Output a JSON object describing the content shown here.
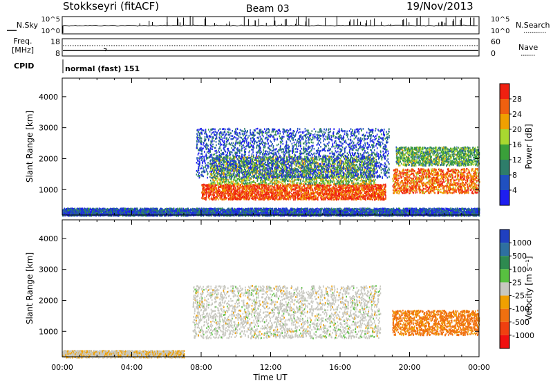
{
  "header": {
    "station": "Stokkseyri (fitACF)",
    "beam": "Beam 03",
    "date": "19/Nov/2013"
  },
  "side_labels": {
    "nsky": "N.Sky",
    "freq_line1": "Freq.",
    "freq_line2": "[MHz]",
    "cpid": "CPID",
    "nsearch": "N.Search",
    "nave": "Nave"
  },
  "cpid_text": "normal (fast) 151",
  "noise_panel": {
    "left_ticks": [
      "10^5",
      "10^0"
    ],
    "right_ticks": [
      "10^5",
      "10^0"
    ]
  },
  "freq_panel": {
    "left_ticks": [
      "18",
      "8"
    ],
    "right_ticks": [
      "60",
      "0"
    ]
  },
  "axes": {
    "ylabel": "Slant Range [km]",
    "xlabel": "Time UT",
    "y_ticks": [
      "1000",
      "2000",
      "3000",
      "4000"
    ],
    "x_ticks": [
      "00:00",
      "04:00",
      "08:00",
      "12:00",
      "16:00",
      "20:00",
      "00:00"
    ]
  },
  "power_scale": {
    "label": "Power [dB]",
    "ticks": [
      "4",
      "8",
      "12",
      "16",
      "20",
      "24",
      "28"
    ],
    "colors": [
      "#1e1ef0",
      "#2050c0",
      "#2e7d6a",
      "#3aa03a",
      "#a8d830",
      "#f0a000",
      "#f06010",
      "#f02010"
    ]
  },
  "velocity_scale": {
    "label": "Velocity [m s⁻¹]",
    "ticks": [
      "1000",
      "500",
      "100",
      "25",
      "-25",
      "-100",
      "-500",
      "-1000"
    ],
    "colors": [
      "#2040c0",
      "#2e70a0",
      "#2e8a50",
      "#58c040",
      "#c8c8c0",
      "#f0a000",
      "#f07010",
      "#f04010",
      "#f01010"
    ]
  },
  "chart_data": [
    {
      "type": "heatmap",
      "title": "Power",
      "xlabel": "Time UT",
      "ylabel": "Slant Range [km]",
      "xlim": [
        0,
        24
      ],
      "ylim": [
        180,
        4600
      ],
      "colorbar": {
        "label": "Power [dB]",
        "range": [
          0,
          32
        ]
      },
      "regions": [
        {
          "time": [
            8.0,
            18.6
          ],
          "range": [
            700,
            1200
          ],
          "value": 28
        },
        {
          "time": [
            8.5,
            18.0
          ],
          "range": [
            1200,
            2100
          ],
          "value": 16
        },
        {
          "time": [
            7.7,
            18.8
          ],
          "range": [
            1400,
            3000
          ],
          "value": 6
        },
        {
          "time": [
            19.0,
            24.0
          ],
          "range": [
            900,
            1700
          ],
          "value": 26
        },
        {
          "time": [
            19.2,
            24.0
          ],
          "range": [
            1800,
            2400
          ],
          "value": 14
        },
        {
          "time": [
            0.0,
            24.0
          ],
          "range": [
            180,
            420
          ],
          "value": 6
        }
      ]
    },
    {
      "type": "heatmap",
      "title": "Velocity",
      "xlabel": "Time UT",
      "ylabel": "Slant Range [km]",
      "xlim": [
        0,
        24
      ],
      "ylim": [
        180,
        4600
      ],
      "colorbar": {
        "label": "Velocity [m s⁻¹]",
        "range": [
          -1000,
          1000
        ]
      },
      "regions": [
        {
          "time": [
            7.5,
            18.3
          ],
          "range": [
            800,
            2500
          ],
          "value": 0
        },
        {
          "time": [
            19.0,
            24.0
          ],
          "range": [
            900,
            1700
          ],
          "value": -400
        },
        {
          "time": [
            0.0,
            7.0
          ],
          "range": [
            180,
            400
          ],
          "value": -60
        }
      ]
    }
  ]
}
